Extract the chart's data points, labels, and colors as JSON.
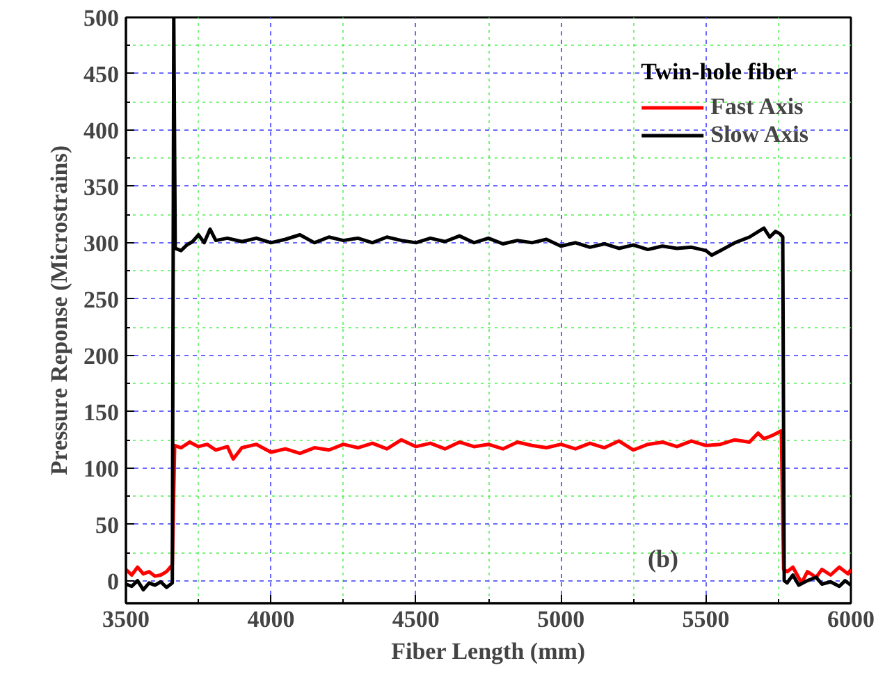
{
  "chart_data": {
    "type": "line",
    "xlabel": "Fiber Length (mm)",
    "ylabel": "Pressure Reponse (Microstrains)",
    "legend_title": "Twin-hole fiber",
    "legend": "top right",
    "grid": true,
    "line_style": "solid",
    "annotations": [
      "(b)"
    ],
    "xlim": [
      3500,
      6000
    ],
    "ylim": [
      -20,
      500
    ],
    "xticks": [
      3500,
      {
        "value": 3750,
        "label": null
      },
      4000,
      {
        "value": 4250,
        "label": null
      },
      4500,
      {
        "value": 4750,
        "label": null
      },
      5000,
      {
        "value": 5250,
        "label": null
      },
      5500,
      {
        "value": 5750,
        "label": null
      },
      6000
    ],
    "yticks": [
      0,
      {
        "value": 25,
        "label": null
      },
      50,
      {
        "value": 75,
        "label": null
      },
      100,
      {
        "value": 125,
        "label": null
      },
      150,
      {
        "value": 175,
        "label": null
      },
      200,
      {
        "value": 225,
        "label": null
      },
      250,
      {
        "value": 275,
        "label": null
      },
      300,
      {
        "value": 325,
        "label": null
      },
      350,
      {
        "value": 375,
        "label": null
      },
      400,
      {
        "value": 425,
        "label": null
      },
      450,
      {
        "value": 475,
        "label": null
      },
      500
    ],
    "series": [
      {
        "name": "Fast Axis",
        "color": "#ff0000",
        "x": [
          3500,
          3520,
          3540,
          3560,
          3580,
          3600,
          3620,
          3640,
          3660,
          3668,
          3690,
          3720,
          3750,
          3780,
          3810,
          3850,
          3870,
          3900,
          3950,
          4000,
          4050,
          4100,
          4150,
          4200,
          4250,
          4300,
          4350,
          4400,
          4450,
          4500,
          4550,
          4600,
          4650,
          4700,
          4750,
          4800,
          4850,
          4900,
          4950,
          5000,
          5050,
          5100,
          5150,
          5200,
          5250,
          5300,
          5350,
          5400,
          5450,
          5500,
          5550,
          5600,
          5650,
          5680,
          5700,
          5730,
          5760,
          5768,
          5780,
          5800,
          5830,
          5850,
          5880,
          5900,
          5930,
          5960,
          5990,
          6000
        ],
        "values": [
          10,
          5,
          12,
          6,
          8,
          4,
          5,
          8,
          14,
          120,
          118,
          123,
          119,
          121,
          116,
          119,
          108,
          118,
          121,
          114,
          117,
          113,
          118,
          116,
          121,
          118,
          122,
          117,
          125,
          119,
          122,
          117,
          123,
          119,
          121,
          117,
          123,
          120,
          118,
          121,
          117,
          122,
          118,
          124,
          116,
          121,
          123,
          119,
          124,
          120,
          121,
          125,
          123,
          131,
          126,
          129,
          133,
          10,
          8,
          12,
          -2,
          8,
          3,
          10,
          5,
          12,
          6,
          10
        ]
      },
      {
        "name": "Slow Axis",
        "color": "#000000",
        "x": [
          3500,
          3520,
          3540,
          3560,
          3580,
          3600,
          3620,
          3640,
          3660,
          3665,
          3670,
          3690,
          3710,
          3730,
          3750,
          3770,
          3790,
          3810,
          3850,
          3900,
          3950,
          4000,
          4050,
          4100,
          4150,
          4200,
          4250,
          4300,
          4350,
          4400,
          4450,
          4500,
          4550,
          4600,
          4650,
          4700,
          4750,
          4800,
          4850,
          4900,
          4950,
          5000,
          5050,
          5100,
          5150,
          5200,
          5250,
          5300,
          5350,
          5400,
          5450,
          5500,
          5520,
          5550,
          5600,
          5650,
          5700,
          5720,
          5740,
          5755,
          5765,
          5770,
          5780,
          5800,
          5820,
          5850,
          5880,
          5900,
          5930,
          5960,
          5980,
          6000
        ],
        "values": [
          -3,
          -5,
          0,
          -8,
          -2,
          -4,
          -1,
          -6,
          -2,
          500,
          295,
          293,
          298,
          301,
          307,
          300,
          312,
          302,
          304,
          301,
          304,
          300,
          303,
          307,
          300,
          305,
          302,
          304,
          300,
          305,
          302,
          300,
          304,
          301,
          306,
          300,
          304,
          299,
          302,
          300,
          303,
          297,
          300,
          296,
          299,
          295,
          298,
          294,
          297,
          295,
          296,
          293,
          289,
          293,
          300,
          305,
          313,
          305,
          310,
          308,
          305,
          0,
          -2,
          5,
          -4,
          0,
          3,
          -3,
          -1,
          -5,
          0,
          -4
        ]
      }
    ]
  }
}
